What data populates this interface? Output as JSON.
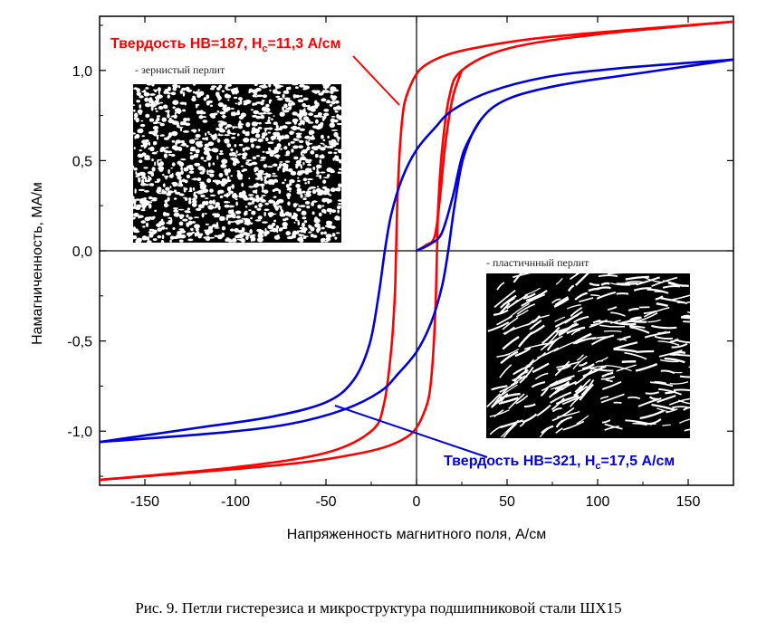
{
  "caption": "Рис. 9. Петли гистерезиса и микроструктура подшипниковой стали ШХ15",
  "chart_data": {
    "type": "line",
    "xlabel": "Напряженность магнитного поля, А/см",
    "ylabel": "Намагниченность, МА/м",
    "xlim": [
      -175,
      175
    ],
    "ylim": [
      -1.3,
      1.3
    ],
    "xticks": [
      "-150",
      "-100",
      "-50",
      "0",
      "50",
      "100",
      "150"
    ],
    "xtick_values": [
      -150,
      -100,
      -50,
      0,
      50,
      100,
      150
    ],
    "yticks": [
      "-1,0",
      "-0,5",
      "0,0",
      "0,5",
      "1,0"
    ],
    "ytick_values": [
      -1.0,
      -0.5,
      0.0,
      0.5,
      1.0
    ],
    "grid": false,
    "series": [
      {
        "name_parts": {
          "prefix": "Твердость HB=187, H",
          "sub": "c",
          "suffix": "=11,3 А/см"
        },
        "color": "#ff0000",
        "coercivity": 11.3,
        "upper_branch": [
          [
            -175,
            -1.27
          ],
          [
            -100,
            -1.2
          ],
          [
            -50,
            -1.12
          ],
          [
            -25,
            -1.0
          ],
          [
            -18,
            -0.85
          ],
          [
            -14,
            -0.55
          ],
          [
            -12,
            -0.25
          ],
          [
            -11.3,
            0.0
          ],
          [
            -10.5,
            0.3
          ],
          [
            -9,
            0.6
          ],
          [
            -7,
            0.8
          ],
          [
            -4,
            0.9
          ],
          [
            0,
            0.98
          ],
          [
            5,
            1.03
          ],
          [
            15,
            1.08
          ],
          [
            30,
            1.12
          ],
          [
            60,
            1.17
          ],
          [
            100,
            1.21
          ],
          [
            175,
            1.27
          ]
        ],
        "lower_branch": [
          [
            -175,
            -1.27
          ],
          [
            -100,
            -1.21
          ],
          [
            -60,
            -1.17
          ],
          [
            -30,
            -1.12
          ],
          [
            -15,
            -1.08
          ],
          [
            -5,
            -1.03
          ],
          [
            0,
            -0.98
          ],
          [
            4,
            -0.9
          ],
          [
            7,
            -0.8
          ],
          [
            9,
            -0.6
          ],
          [
            10.5,
            -0.3
          ],
          [
            11.3,
            0.0
          ],
          [
            12,
            0.25
          ],
          [
            14,
            0.55
          ],
          [
            18,
            0.85
          ],
          [
            25,
            1.0
          ],
          [
            50,
            1.12
          ],
          [
            100,
            1.2
          ],
          [
            175,
            1.27
          ]
        ],
        "initial_curve": [
          [
            0,
            0.0
          ],
          [
            5,
            0.03
          ],
          [
            10,
            0.08
          ],
          [
            13,
            0.3
          ],
          [
            16,
            0.6
          ],
          [
            20,
            0.85
          ],
          [
            25,
            1.0
          ]
        ]
      },
      {
        "name_parts": {
          "prefix": "Твердость HB=321, H",
          "sub": "c",
          "suffix": "=17,5 А/см"
        },
        "color": "#0000dd",
        "coercivity": 17.5,
        "upper_branch": [
          [
            -175,
            -1.06
          ],
          [
            -120,
            -0.98
          ],
          [
            -80,
            -0.92
          ],
          [
            -50,
            -0.84
          ],
          [
            -35,
            -0.72
          ],
          [
            -26,
            -0.52
          ],
          [
            -21,
            -0.25
          ],
          [
            -17.5,
            0.0
          ],
          [
            -14,
            0.2
          ],
          [
            -8,
            0.4
          ],
          [
            0,
            0.56
          ],
          [
            10,
            0.68
          ],
          [
            20,
            0.78
          ],
          [
            40,
            0.88
          ],
          [
            70,
            0.96
          ],
          [
            110,
            1.01
          ],
          [
            175,
            1.06
          ]
        ],
        "lower_branch": [
          [
            -175,
            -1.06
          ],
          [
            -110,
            -1.01
          ],
          [
            -70,
            -0.96
          ],
          [
            -40,
            -0.88
          ],
          [
            -20,
            -0.78
          ],
          [
            -10,
            -0.68
          ],
          [
            0,
            -0.56
          ],
          [
            8,
            -0.4
          ],
          [
            14,
            -0.2
          ],
          [
            17.5,
            0.0
          ],
          [
            21,
            0.25
          ],
          [
            26,
            0.52
          ],
          [
            35,
            0.72
          ],
          [
            50,
            0.84
          ],
          [
            80,
            0.92
          ],
          [
            120,
            0.98
          ],
          [
            175,
            1.06
          ]
        ],
        "initial_curve": [
          [
            0,
            0.0
          ],
          [
            8,
            0.04
          ],
          [
            14,
            0.1
          ],
          [
            20,
            0.3
          ],
          [
            26,
            0.55
          ],
          [
            35,
            0.72
          ]
        ]
      }
    ],
    "insets": [
      {
        "label": "- зернистый перлит"
      },
      {
        "label": "- пластичнный перлит"
      }
    ]
  }
}
